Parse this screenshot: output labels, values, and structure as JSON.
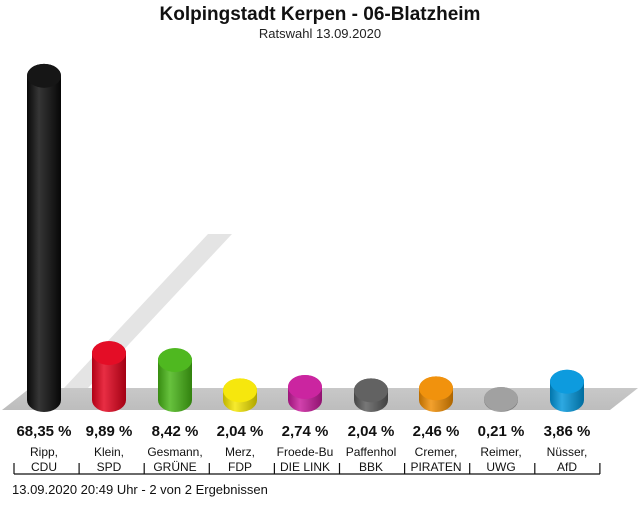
{
  "header": {
    "title": "Kolpingstadt Kerpen - 06-Blatzheim",
    "subtitle": "Ratswahl 13.09.2020"
  },
  "footer": {
    "text": "13.09.2020 20:49 Uhr - 2 von 2 Ergebnissen"
  },
  "chart_data": {
    "type": "bar",
    "title": "Kolpingstadt Kerpen - 06-Blatzheim",
    "subtitle": "Ratswahl 13.09.2020",
    "ylim": [
      0,
      70
    ],
    "grid": false,
    "legend": "none",
    "categories": [
      {
        "name": "Ripp,",
        "party": "CDU",
        "value_label": "68,35 %"
      },
      {
        "name": "Klein,",
        "party": "SPD",
        "value_label": "9,89 %"
      },
      {
        "name": "Gesmann,",
        "party": "GRÜNE",
        "value_label": "8,42 %"
      },
      {
        "name": "Merz,",
        "party": "FDP",
        "value_label": "2,04 %"
      },
      {
        "name": "Froede-Bu",
        "party": "DIE LINK",
        "value_label": "2,74 %"
      },
      {
        "name": "Paffenhol",
        "party": "BBK",
        "value_label": "2,04 %"
      },
      {
        "name": "Cremer,",
        "party": "PIRATEN",
        "value_label": "2,46 %"
      },
      {
        "name": "Reimer,",
        "party": "UWG",
        "value_label": "0,21 %"
      },
      {
        "name": "Nüsser,",
        "party": "AfD",
        "value_label": "3,86 %"
      }
    ],
    "values": [
      68.35,
      9.89,
      8.42,
      2.04,
      2.74,
      2.04,
      2.46,
      0.21,
      3.86
    ],
    "colors": [
      "#0a0a0a",
      "#e3001b",
      "#46b414",
      "#f5e600",
      "#c8199b",
      "#5a5a5a",
      "#f08c00",
      "#9c9c9c",
      "#0096dc"
    ]
  }
}
